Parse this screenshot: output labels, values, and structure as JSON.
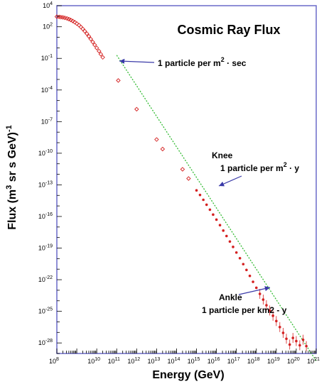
{
  "chart_data": {
    "type": "scatter",
    "title": "Cosmic Ray Flux",
    "xlabel": "Energy (GeV)",
    "ylabel_main": "Flux (m",
    "ylabel_sup1": "3",
    "ylabel_rest": " sr s GeV)",
    "ylabel_sup2": "-1",
    "x_scale": "log",
    "y_scale": "log",
    "xlim": [
      100000000.0,
      1e+21
    ],
    "ylim": [
      1e-29,
      10000.0
    ],
    "x_ticks": [
      {
        "base": "10",
        "exp": "8",
        "value": 100000000.0
      },
      {
        "base": "10",
        "exp": "10",
        "value": 10000000000.0
      },
      {
        "base": "10",
        "exp": "11",
        "value": 100000000000.0
      },
      {
        "base": "10",
        "exp": "12",
        "value": 1000000000000.0
      },
      {
        "base": "10",
        "exp": "13",
        "value": 10000000000000.0
      },
      {
        "base": "10",
        "exp": "14",
        "value": 100000000000000.0
      },
      {
        "base": "10",
        "exp": "15",
        "value": 1000000000000000.0
      },
      {
        "base": "10",
        "exp": "16",
        "value": 1e+16
      },
      {
        "base": "10",
        "exp": "17",
        "value": 1e+17
      },
      {
        "base": "10",
        "exp": "18",
        "value": 1e+18
      },
      {
        "base": "10",
        "exp": "19",
        "value": 1e+19
      },
      {
        "base": "10",
        "exp": "20",
        "value": 1e+20
      },
      {
        "base": "10",
        "exp": "21",
        "value": 1e+21
      }
    ],
    "y_ticks": [
      {
        "base": "10",
        "exp": "4",
        "value": 10000.0
      },
      {
        "base": "10",
        "exp": "2",
        "value": 100.0
      },
      {
        "base": "10",
        "exp": "-1",
        "value": 0.1
      },
      {
        "base": "10",
        "exp": "-4",
        "value": 0.0001
      },
      {
        "base": "10",
        "exp": "-7",
        "value": 1e-07
      },
      {
        "base": "10",
        "exp": "-10",
        "value": 1e-10
      },
      {
        "base": "10",
        "exp": "-13",
        "value": 1e-13
      },
      {
        "base": "10",
        "exp": "-16",
        "value": 1e-16
      },
      {
        "base": "10",
        "exp": "-19",
        "value": 1e-19
      },
      {
        "base": "10",
        "exp": "-22",
        "value": 1e-22
      },
      {
        "base": "10",
        "exp": "-25",
        "value": 1e-25
      },
      {
        "base": "10",
        "exp": "-28",
        "value": 1e-28
      }
    ],
    "grid": false,
    "colors": {
      "points": "#d42020",
      "fit_line": "#33bb33",
      "arrow": "#3a3aa8",
      "frame": "#6a6ac8"
    },
    "annotations": [
      {
        "id": "pps",
        "lines": [
          {
            "text": "1 particle per m",
            "sup": "2",
            "after": " · sec"
          }
        ]
      },
      {
        "id": "knee",
        "lines": [
          {
            "text": "Knee",
            "sup": "",
            "after": ""
          },
          {
            "text": "1 particle per m",
            "sup": "2",
            "after": " · y"
          }
        ]
      },
      {
        "id": "ankle",
        "lines": [
          {
            "text": "Ankle",
            "sup": "",
            "after": ""
          },
          {
            "text": "1 particle per km2 - y",
            "sup": "",
            "after": ""
          }
        ]
      }
    ],
    "series": [
      {
        "style": "open-diamond",
        "points": [
          [
            100000000.0,
            900.0
          ],
          [
            130000000.0,
            860.0
          ],
          [
            160000000.0,
            820.0
          ],
          [
            200000000.0,
            770.0
          ],
          [
            250000000.0,
            700.0
          ],
          [
            320000000.0,
            620.0
          ],
          [
            400000000.0,
            530.0
          ],
          [
            500000000.0,
            440.0
          ],
          [
            630000000.0,
            350.0
          ],
          [
            790000000.0,
            270.0
          ],
          [
            1000000000.0,
            200.0
          ],
          [
            1300000000.0,
            140.0
          ],
          [
            1600000000.0,
            95.0
          ],
          [
            2000000000.0,
            62.0
          ],
          [
            2500000000.0,
            38.0
          ],
          [
            3200000000.0,
            22.0
          ],
          [
            4000000000.0,
            12.5
          ],
          [
            5000000000.0,
            6.8
          ],
          [
            6300000000.0,
            3.6
          ],
          [
            7900000000.0,
            1.9
          ],
          [
            10000000000.0,
            0.97
          ],
          [
            13000000000.0,
            0.49
          ],
          [
            16000000000.0,
            0.25
          ],
          [
            20000000000.0,
            0.125
          ],
          [
            120000000000.0,
            0.0008
          ],
          [
            1000000000000.0,
            1.5e-06
          ],
          [
            10000000000000.0,
            2e-09
          ],
          [
            20000000000000.0,
            2.5e-10
          ],
          [
            200000000000000.0,
            3e-12
          ],
          [
            400000000000000.0,
            4e-13
          ]
        ]
      },
      {
        "style": "filled-dot",
        "points": [
          [
            1000000000000000.0,
            3e-14
          ],
          [
            1500000000000000.0,
            1.1e-14
          ],
          [
            2200000000000000.0,
            3.8e-15
          ],
          [
            3200000000000000.0,
            1.3e-15
          ],
          [
            4700000000000000.0,
            4.4e-16
          ],
          [
            6800000000000000.0,
            1.5e-16
          ],
          [
            1e+16,
            5e-17
          ],
          [
            1.5e+16,
            1.5e-17
          ],
          [
            2.2e+16,
            4.6e-18
          ],
          [
            3.2e+16,
            1.4e-18
          ],
          [
            4.7e+16,
            4.2e-19
          ],
          [
            6.8e+16,
            1.3e-19
          ],
          [
            1e+17,
            3.8e-20
          ],
          [
            1.5e+17,
            1.1e-20
          ],
          [
            2.2e+17,
            3e-21
          ],
          [
            3.2e+17,
            8.4e-22
          ],
          [
            4.7e+17,
            2.3e-22
          ],
          [
            6.8e+17,
            6.3e-23
          ],
          [
            1e+18,
            1.7e-23
          ],
          [
            1.5e+18,
            4.5e-24
          ],
          [
            2.2e+18,
            1.3e-24
          ],
          [
            3.2e+18,
            3.8e-25
          ],
          [
            4.7e+18,
            1.2e-25
          ],
          [
            6.8e+18,
            3.8e-26
          ],
          [
            1e+19,
            1.2e-26
          ],
          [
            1.5e+19,
            3.2e-27
          ],
          [
            2.2e+19,
            9e-28
          ],
          [
            3.2e+19,
            2.5e-28
          ],
          [
            4.7e+19,
            7e-29
          ],
          [
            6.8e+19,
            3e-28
          ],
          [
            1e+20,
            1.5e-28
          ],
          [
            1.5e+20,
            6e-29
          ],
          [
            2.2e+20,
            2e-28
          ],
          [
            3.2e+20,
            5e-29
          ]
        ]
      }
    ],
    "fit_line": {
      "style": "dotted",
      "points": [
        [
          100000000000.0,
          0.2
        ],
        [
          1e+21,
          2e-30
        ]
      ]
    }
  }
}
